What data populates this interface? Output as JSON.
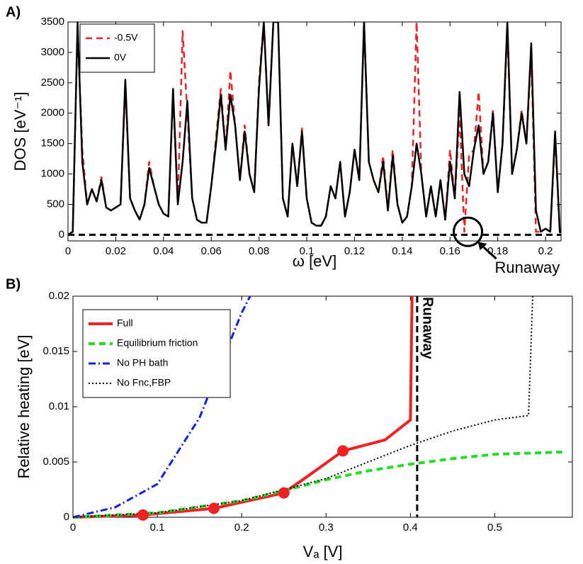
{
  "chart_data": [
    {
      "type": "line",
      "panel": "A)",
      "xlabel": "ω [eV]",
      "ylabel": "DOS [eV⁻¹]",
      "xlim": [
        0,
        0.2065
      ],
      "ylim": [
        -100,
        3500
      ],
      "xticks": [
        0,
        0.02,
        0.04,
        0.06,
        0.08,
        0.1,
        0.12,
        0.14,
        0.16,
        0.18,
        0.2
      ],
      "yticks": [
        0,
        500,
        1000,
        1500,
        2000,
        2500,
        3000,
        3500
      ],
      "legend": "upper left",
      "x": [
        0,
        0.002,
        0.004,
        0.006,
        0.008,
        0.01,
        0.012,
        0.014,
        0.016,
        0.018,
        0.02,
        0.022,
        0.024,
        0.026,
        0.028,
        0.03,
        0.032,
        0.034,
        0.036,
        0.038,
        0.04,
        0.042,
        0.044,
        0.046,
        0.048,
        0.05,
        0.052,
        0.054,
        0.056,
        0.058,
        0.06,
        0.062,
        0.064,
        0.066,
        0.068,
        0.07,
        0.072,
        0.074,
        0.076,
        0.078,
        0.08,
        0.082,
        0.084,
        0.086,
        0.088,
        0.09,
        0.092,
        0.094,
        0.096,
        0.098,
        0.1,
        0.102,
        0.104,
        0.106,
        0.108,
        0.11,
        0.112,
        0.114,
        0.116,
        0.118,
        0.12,
        0.122,
        0.124,
        0.126,
        0.128,
        0.13,
        0.132,
        0.134,
        0.136,
        0.138,
        0.14,
        0.142,
        0.144,
        0.146,
        0.148,
        0.15,
        0.152,
        0.154,
        0.156,
        0.158,
        0.16,
        0.162,
        0.164,
        0.166,
        0.168,
        0.17,
        0.172,
        0.174,
        0.176,
        0.178,
        0.18,
        0.182,
        0.184,
        0.186,
        0.188,
        0.19,
        0.192,
        0.194,
        0.196,
        0.198,
        0.2,
        0.202,
        0.204,
        0.206
      ],
      "series": [
        {
          "name": "-0.5V",
          "color": "#ee2222",
          "dash": "dashed",
          "values": [
            0,
            50,
            3400,
            1400,
            500,
            750,
            550,
            950,
            450,
            400,
            450,
            500,
            2450,
            600,
            400,
            250,
            500,
            1200,
            800,
            500,
            350,
            300,
            2300,
            500,
            3350,
            2000,
            600,
            250,
            200,
            200,
            800,
            1600,
            2400,
            1400,
            2700,
            1800,
            900,
            1800,
            1000,
            700,
            2500,
            3500,
            1800,
            3500,
            3500,
            600,
            300,
            1500,
            800,
            1750,
            600,
            200,
            150,
            150,
            300,
            800,
            600,
            1200,
            300,
            700,
            1400,
            900,
            3500,
            1200,
            900,
            700,
            1300,
            400,
            1400,
            500,
            200,
            300,
            800,
            3500,
            1000,
            300,
            800,
            300,
            900,
            250,
            1400,
            600,
            2000,
            50,
            1300,
            1400,
            2350,
            1000,
            1200,
            2050,
            700,
            1500,
            3400,
            1000,
            1400,
            2050,
            1500,
            3000,
            50,
            50,
            100,
            50,
            1600,
            30
          ]
        },
        {
          "name": "0V",
          "color": "#000000",
          "dash": "solid",
          "values": [
            0,
            50,
            3500,
            1200,
            500,
            750,
            550,
            900,
            450,
            400,
            450,
            500,
            2550,
            600,
            400,
            250,
            500,
            1100,
            800,
            500,
            350,
            300,
            2400,
            500,
            1200,
            2200,
            600,
            250,
            200,
            200,
            800,
            1500,
            2300,
            1400,
            2300,
            1800,
            900,
            1700,
            1000,
            700,
            2400,
            3500,
            1800,
            3500,
            3500,
            600,
            300,
            1500,
            800,
            1700,
            600,
            200,
            150,
            150,
            300,
            800,
            600,
            1200,
            300,
            700,
            1400,
            900,
            3500,
            1200,
            900,
            700,
            1200,
            400,
            1300,
            500,
            200,
            300,
            800,
            1500,
            1000,
            300,
            800,
            300,
            900,
            250,
            1200,
            600,
            2350,
            1000,
            800,
            1400,
            1800,
            1000,
            1200,
            2000,
            700,
            1500,
            3500,
            1000,
            1400,
            2000,
            1500,
            3150,
            400,
            50,
            100,
            50,
            1700,
            30
          ]
        }
      ],
      "hlines": [
        {
          "y": 0,
          "color": "#000000",
          "dash": "dashed"
        }
      ],
      "annotation": {
        "text": "Runaway",
        "x": 0.1675,
        "y": 50
      }
    },
    {
      "type": "line",
      "panel": "B)",
      "xlabel": "Vₐ [V]",
      "ylabel": "Relative heating [eV]",
      "xlim": [
        0,
        0.592
      ],
      "ylim": [
        0,
        0.02
      ],
      "xticks": [
        0,
        0.1,
        0.2,
        0.3,
        0.4,
        0.5
      ],
      "yticks": [
        0,
        0.005,
        0.01,
        0.015,
        0.02
      ],
      "legend": "upper left",
      "series": [
        {
          "name": "Full",
          "color": "#ee2222",
          "dash": "solid",
          "width": 4,
          "x": [
            0,
            0.083,
            0.167,
            0.25,
            0.28,
            0.32,
            0.37,
            0.4,
            0.402
          ],
          "values": [
            0,
            0.0002,
            0.0008,
            0.0022,
            0.0038,
            0.006,
            0.007,
            0.0088,
            0.02
          ],
          "marker_indices": [
            1,
            2,
            3,
            5
          ]
        },
        {
          "name": "Equilibrium friction",
          "color": "#22dd22",
          "dash": "dashed",
          "width": 4,
          "x": [
            0,
            0.1,
            0.2,
            0.25,
            0.3,
            0.35,
            0.4,
            0.45,
            0.5,
            0.58
          ],
          "values": [
            0,
            0.0004,
            0.0015,
            0.0024,
            0.0034,
            0.0042,
            0.0048,
            0.0053,
            0.0057,
            0.0059
          ]
        },
        {
          "name": "No PH bath",
          "color": "#1122dd",
          "dash": "dashdot",
          "width": 3,
          "x": [
            0,
            0.05,
            0.1,
            0.15,
            0.2,
            0.21
          ],
          "values": [
            0,
            0.0009,
            0.003,
            0.009,
            0.0185,
            0.02
          ]
        },
        {
          "name": "No Fnc,FBP",
          "color": "#000000",
          "dash": "dotted",
          "width": 2,
          "x": [
            0,
            0.1,
            0.2,
            0.3,
            0.35,
            0.4,
            0.45,
            0.5,
            0.54,
            0.545
          ],
          "values": [
            0,
            0.0004,
            0.0015,
            0.0035,
            0.005,
            0.0065,
            0.0078,
            0.0088,
            0.0092,
            0.02
          ]
        }
      ],
      "vline": {
        "x": 0.408,
        "label": "Runaway"
      }
    }
  ]
}
